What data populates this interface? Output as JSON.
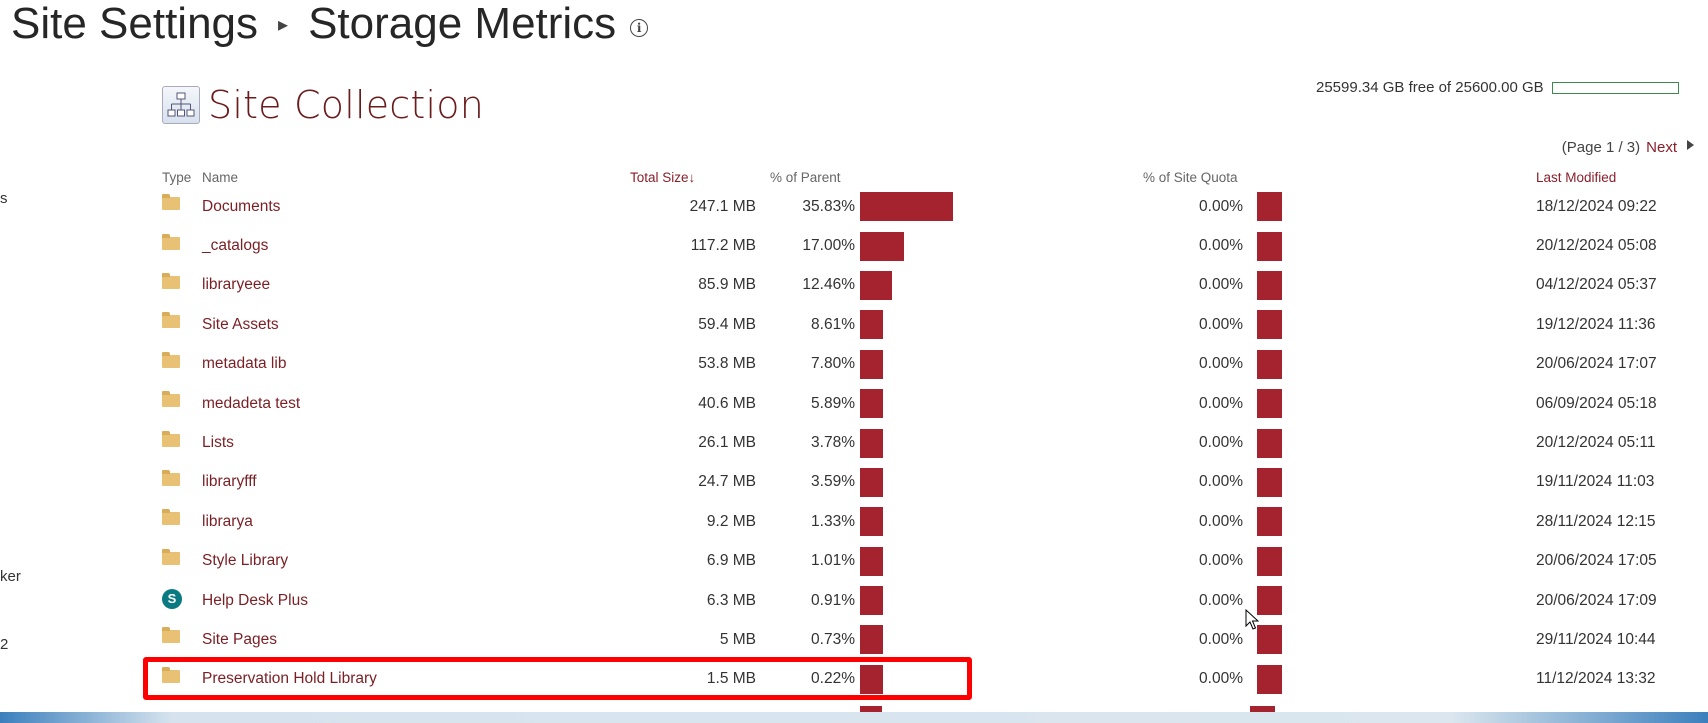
{
  "page": {
    "breadcrumb_parent": "Site Settings",
    "title": "Storage Metrics",
    "separator": "▸",
    "info_icon": "i"
  },
  "left_fragments": [
    "s",
    "ker",
    "2"
  ],
  "section": {
    "title": "Site Collection",
    "icon": "site-collection-icon"
  },
  "quota": {
    "text": "25599.34 GB free of 25600.00 GB",
    "used_fraction": 0.0
  },
  "pager": {
    "text": "(Page 1 / 3)",
    "next_label": "Next"
  },
  "colors": {
    "accent": "#a5232f",
    "link": "#7a1f24",
    "highlight": "#ff0000"
  },
  "columns": {
    "type": "Type",
    "name": "Name",
    "total_size": "Total Size",
    "sort_indicator": "↓",
    "pct_parent": "% of Parent",
    "pct_site_quota": "% of Site Quota",
    "last_modified": "Last Modified"
  },
  "rows": [
    {
      "type": "folder",
      "name": "Documents",
      "size": "247.1 MB",
      "pct_parent": "35.83%",
      "pct_value": 35.83,
      "pct_quota": "0.00%",
      "modified": "18/12/2024 09:22"
    },
    {
      "type": "folder",
      "name": "_catalogs",
      "size": "117.2 MB",
      "pct_parent": "17.00%",
      "pct_value": 17.0,
      "pct_quota": "0.00%",
      "modified": "20/12/2024 05:08"
    },
    {
      "type": "folder",
      "name": "libraryeee",
      "size": "85.9 MB",
      "pct_parent": "12.46%",
      "pct_value": 12.46,
      "pct_quota": "0.00%",
      "modified": "04/12/2024 05:37"
    },
    {
      "type": "folder",
      "name": "Site Assets",
      "size": "59.4 MB",
      "pct_parent": "8.61%",
      "pct_value": 8.61,
      "pct_quota": "0.00%",
      "modified": "19/12/2024 11:36"
    },
    {
      "type": "folder",
      "name": "metadata lib",
      "size": "53.8 MB",
      "pct_parent": "7.80%",
      "pct_value": 7.8,
      "pct_quota": "0.00%",
      "modified": "20/06/2024 17:07"
    },
    {
      "type": "folder",
      "name": "medadeta test",
      "size": "40.6 MB",
      "pct_parent": "5.89%",
      "pct_value": 5.89,
      "pct_quota": "0.00%",
      "modified": "06/09/2024 05:18"
    },
    {
      "type": "folder",
      "name": "Lists",
      "size": "26.1 MB",
      "pct_parent": "3.78%",
      "pct_value": 3.78,
      "pct_quota": "0.00%",
      "modified": "20/12/2024 05:11"
    },
    {
      "type": "folder",
      "name": "libraryfff",
      "size": "24.7 MB",
      "pct_parent": "3.59%",
      "pct_value": 3.59,
      "pct_quota": "0.00%",
      "modified": "19/11/2024 11:03"
    },
    {
      "type": "folder",
      "name": "librarya",
      "size": "9.2 MB",
      "pct_parent": "1.33%",
      "pct_value": 1.33,
      "pct_quota": "0.00%",
      "modified": "28/11/2024 12:15"
    },
    {
      "type": "folder",
      "name": "Style Library",
      "size": "6.9 MB",
      "pct_parent": "1.01%",
      "pct_value": 1.01,
      "pct_quota": "0.00%",
      "modified": "20/06/2024 17:05"
    },
    {
      "type": "site",
      "name": "Help Desk Plus",
      "size": "6.3 MB",
      "pct_parent": "0.91%",
      "pct_value": 0.91,
      "pct_quota": "0.00%",
      "modified": "20/06/2024 17:09"
    },
    {
      "type": "folder",
      "name": "Site Pages",
      "size": "5 MB",
      "pct_parent": "0.73%",
      "pct_value": 0.73,
      "pct_quota": "0.00%",
      "modified": "29/11/2024 10:44"
    },
    {
      "type": "folder",
      "name": "Preservation Hold Library",
      "size": "1.5 MB",
      "pct_parent": "0.22%",
      "pct_value": 0.22,
      "pct_quota": "0.00%",
      "modified": "11/12/2024 13:32"
    }
  ]
}
